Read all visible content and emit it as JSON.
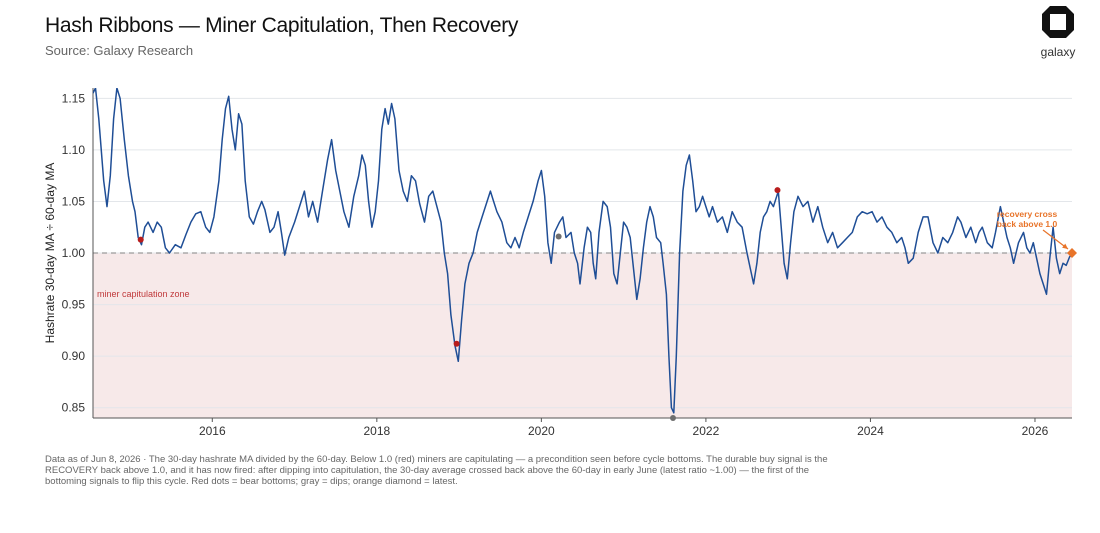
{
  "header": {
    "title": "Hash Ribbons — Miner Capitulation, Then Recovery",
    "subtitle": "Source: Galaxy Research"
  },
  "logo": {
    "text": "galaxy"
  },
  "footnote": "Data as of Jun 8, 2026 · The 30-day hashrate MA divided by the 60-day. Below 1.0 (red) miners are capitulating — a precondition seen before cycle bottoms. The durable buy signal is the RECOVERY back above 1.0, and it has now fired: after dipping into capitulation, the 30-day average crossed back above the 60-day in early June (latest ratio ~1.00) — the first of the bottoming signals to flip this cycle. Red dots = bear bottoms; gray = dips; orange diamond = latest.",
  "colors": {
    "line": "#1f4e96",
    "zone_fill": "#f7e9e9",
    "zone_label": "#c0393b",
    "red_dot": "#b81c1c",
    "gray_dot": "#6e6e6e",
    "orange": "#e8742a",
    "threshold": "#9a9a9a",
    "grid": "#e3e6ea"
  },
  "chart_data": {
    "type": "line",
    "ylabel": "Hashrate 30-day MA ÷ 60-day MA",
    "xlabel": "",
    "xlim": [
      2014.55,
      2026.45
    ],
    "ylim": [
      0.84,
      1.16
    ],
    "yticks": [
      "0.85",
      "0.90",
      "0.95",
      "1.00",
      "1.05",
      "1.10",
      "1.15"
    ],
    "xticks": [
      "2016",
      "2018",
      "2020",
      "2022",
      "2024",
      "2026"
    ],
    "threshold": 1.0,
    "zone_label": "miner capitulation zone",
    "annotation": {
      "text_line1": "recovery cross",
      "text_line2": "back above 1.0"
    },
    "series": [
      {
        "values": [
          [
            2014.55,
            1.155
          ],
          [
            2014.58,
            1.16
          ],
          [
            2014.62,
            1.13
          ],
          [
            2014.68,
            1.07
          ],
          [
            2014.72,
            1.045
          ],
          [
            2014.76,
            1.075
          ],
          [
            2014.8,
            1.13
          ],
          [
            2014.84,
            1.16
          ],
          [
            2014.88,
            1.15
          ],
          [
            2014.93,
            1.11
          ],
          [
            2014.98,
            1.075
          ],
          [
            2015.03,
            1.05
          ],
          [
            2015.06,
            1.04
          ],
          [
            2015.1,
            1.015
          ],
          [
            2015.14,
            1.008
          ],
          [
            2015.18,
            1.025
          ],
          [
            2015.22,
            1.03
          ],
          [
            2015.28,
            1.02
          ],
          [
            2015.33,
            1.03
          ],
          [
            2015.38,
            1.025
          ],
          [
            2015.43,
            1.005
          ],
          [
            2015.48,
            1.0
          ],
          [
            2015.55,
            1.008
          ],
          [
            2015.62,
            1.005
          ],
          [
            2015.68,
            1.018
          ],
          [
            2015.74,
            1.03
          ],
          [
            2015.8,
            1.038
          ],
          [
            2015.86,
            1.04
          ],
          [
            2015.92,
            1.025
          ],
          [
            2015.97,
            1.02
          ],
          [
            2016.02,
            1.035
          ],
          [
            2016.08,
            1.07
          ],
          [
            2016.12,
            1.11
          ],
          [
            2016.16,
            1.14
          ],
          [
            2016.2,
            1.152
          ],
          [
            2016.24,
            1.12
          ],
          [
            2016.28,
            1.1
          ],
          [
            2016.32,
            1.135
          ],
          [
            2016.36,
            1.125
          ],
          [
            2016.4,
            1.07
          ],
          [
            2016.45,
            1.035
          ],
          [
            2016.5,
            1.028
          ],
          [
            2016.55,
            1.04
          ],
          [
            2016.6,
            1.05
          ],
          [
            2016.64,
            1.042
          ],
          [
            2016.7,
            1.02
          ],
          [
            2016.75,
            1.025
          ],
          [
            2016.8,
            1.04
          ],
          [
            2016.84,
            1.02
          ],
          [
            2016.88,
            0.998
          ],
          [
            2016.93,
            1.015
          ],
          [
            2017.0,
            1.03
          ],
          [
            2017.06,
            1.045
          ],
          [
            2017.12,
            1.06
          ],
          [
            2017.17,
            1.035
          ],
          [
            2017.22,
            1.05
          ],
          [
            2017.28,
            1.03
          ],
          [
            2017.34,
            1.06
          ],
          [
            2017.4,
            1.09
          ],
          [
            2017.45,
            1.11
          ],
          [
            2017.5,
            1.08
          ],
          [
            2017.55,
            1.06
          ],
          [
            2017.6,
            1.04
          ],
          [
            2017.66,
            1.025
          ],
          [
            2017.72,
            1.055
          ],
          [
            2017.78,
            1.075
          ],
          [
            2017.82,
            1.095
          ],
          [
            2017.86,
            1.085
          ],
          [
            2017.9,
            1.05
          ],
          [
            2017.94,
            1.025
          ],
          [
            2017.98,
            1.04
          ],
          [
            2018.02,
            1.07
          ],
          [
            2018.06,
            1.12
          ],
          [
            2018.1,
            1.14
          ],
          [
            2018.14,
            1.125
          ],
          [
            2018.18,
            1.145
          ],
          [
            2018.22,
            1.13
          ],
          [
            2018.27,
            1.08
          ],
          [
            2018.32,
            1.06
          ],
          [
            2018.37,
            1.05
          ],
          [
            2018.42,
            1.075
          ],
          [
            2018.47,
            1.07
          ],
          [
            2018.52,
            1.048
          ],
          [
            2018.58,
            1.03
          ],
          [
            2018.63,
            1.055
          ],
          [
            2018.68,
            1.06
          ],
          [
            2018.73,
            1.045
          ],
          [
            2018.78,
            1.03
          ],
          [
            2018.82,
            1.0
          ],
          [
            2018.86,
            0.98
          ],
          [
            2018.9,
            0.94
          ],
          [
            2018.95,
            0.91
          ],
          [
            2018.99,
            0.895
          ],
          [
            2019.03,
            0.935
          ],
          [
            2019.07,
            0.97
          ],
          [
            2019.12,
            0.99
          ],
          [
            2019.17,
            1.0
          ],
          [
            2019.22,
            1.02
          ],
          [
            2019.28,
            1.035
          ],
          [
            2019.34,
            1.05
          ],
          [
            2019.38,
            1.06
          ],
          [
            2019.42,
            1.05
          ],
          [
            2019.46,
            1.04
          ],
          [
            2019.52,
            1.03
          ],
          [
            2019.58,
            1.01
          ],
          [
            2019.63,
            1.005
          ],
          [
            2019.68,
            1.015
          ],
          [
            2019.73,
            1.005
          ],
          [
            2019.78,
            1.02
          ],
          [
            2019.84,
            1.035
          ],
          [
            2019.9,
            1.05
          ],
          [
            2019.96,
            1.07
          ],
          [
            2020.0,
            1.08
          ],
          [
            2020.04,
            1.055
          ],
          [
            2020.08,
            1.01
          ],
          [
            2020.12,
            0.99
          ],
          [
            2020.16,
            1.02
          ],
          [
            2020.22,
            1.03
          ],
          [
            2020.26,
            1.035
          ],
          [
            2020.3,
            1.015
          ],
          [
            2020.36,
            1.02
          ],
          [
            2020.4,
            1.0
          ],
          [
            2020.44,
            0.99
          ],
          [
            2020.47,
            0.97
          ],
          [
            2020.52,
            1.005
          ],
          [
            2020.56,
            1.025
          ],
          [
            2020.6,
            1.02
          ],
          [
            2020.63,
            0.99
          ],
          [
            2020.66,
            0.975
          ],
          [
            2020.7,
            1.02
          ],
          [
            2020.75,
            1.05
          ],
          [
            2020.8,
            1.045
          ],
          [
            2020.84,
            1.025
          ],
          [
            2020.88,
            0.98
          ],
          [
            2020.92,
            0.97
          ],
          [
            2020.96,
            1.0
          ],
          [
            2021.0,
            1.03
          ],
          [
            2021.04,
            1.025
          ],
          [
            2021.08,
            1.015
          ],
          [
            2021.12,
            0.985
          ],
          [
            2021.16,
            0.955
          ],
          [
            2021.2,
            0.975
          ],
          [
            2021.24,
            1.005
          ],
          [
            2021.28,
            1.03
          ],
          [
            2021.32,
            1.045
          ],
          [
            2021.36,
            1.035
          ],
          [
            2021.4,
            1.015
          ],
          [
            2021.45,
            1.01
          ],
          [
            2021.48,
            0.99
          ],
          [
            2021.52,
            0.96
          ],
          [
            2021.55,
            0.9
          ],
          [
            2021.58,
            0.85
          ],
          [
            2021.61,
            0.845
          ],
          [
            2021.64,
            0.9
          ],
          [
            2021.68,
            1.0
          ],
          [
            2021.72,
            1.06
          ],
          [
            2021.76,
            1.085
          ],
          [
            2021.8,
            1.095
          ],
          [
            2021.84,
            1.07
          ],
          [
            2021.88,
            1.04
          ],
          [
            2021.92,
            1.045
          ],
          [
            2021.96,
            1.055
          ],
          [
            2022.0,
            1.045
          ],
          [
            2022.04,
            1.035
          ],
          [
            2022.08,
            1.045
          ],
          [
            2022.14,
            1.03
          ],
          [
            2022.2,
            1.035
          ],
          [
            2022.26,
            1.02
          ],
          [
            2022.32,
            1.04
          ],
          [
            2022.38,
            1.03
          ],
          [
            2022.44,
            1.025
          ],
          [
            2022.5,
            1.0
          ],
          [
            2022.54,
            0.985
          ],
          [
            2022.58,
            0.97
          ],
          [
            2022.62,
            0.99
          ],
          [
            2022.66,
            1.02
          ],
          [
            2022.7,
            1.035
          ],
          [
            2022.74,
            1.04
          ],
          [
            2022.78,
            1.05
          ],
          [
            2022.82,
            1.045
          ],
          [
            2022.86,
            1.055
          ],
          [
            2022.88,
            1.06
          ],
          [
            2022.91,
            1.03
          ],
          [
            2022.95,
            0.99
          ],
          [
            2022.99,
            0.975
          ],
          [
            2023.03,
            1.01
          ],
          [
            2023.07,
            1.04
          ],
          [
            2023.12,
            1.055
          ],
          [
            2023.18,
            1.045
          ],
          [
            2023.24,
            1.05
          ],
          [
            2023.3,
            1.03
          ],
          [
            2023.36,
            1.045
          ],
          [
            2023.42,
            1.025
          ],
          [
            2023.48,
            1.01
          ],
          [
            2023.54,
            1.02
          ],
          [
            2023.6,
            1.005
          ],
          [
            2023.66,
            1.01
          ],
          [
            2023.72,
            1.015
          ],
          [
            2023.78,
            1.02
          ],
          [
            2023.84,
            1.035
          ],
          [
            2023.9,
            1.04
          ],
          [
            2023.96,
            1.038
          ],
          [
            2024.02,
            1.04
          ],
          [
            2024.08,
            1.03
          ],
          [
            2024.14,
            1.035
          ],
          [
            2024.2,
            1.025
          ],
          [
            2024.26,
            1.02
          ],
          [
            2024.32,
            1.01
          ],
          [
            2024.38,
            1.015
          ],
          [
            2024.42,
            1.005
          ],
          [
            2024.46,
            0.99
          ],
          [
            2024.52,
            0.995
          ],
          [
            2024.58,
            1.02
          ],
          [
            2024.64,
            1.035
          ],
          [
            2024.7,
            1.035
          ],
          [
            2024.76,
            1.01
          ],
          [
            2024.82,
            1.0
          ],
          [
            2024.88,
            1.015
          ],
          [
            2024.94,
            1.01
          ],
          [
            2025.0,
            1.02
          ],
          [
            2025.06,
            1.035
          ],
          [
            2025.1,
            1.03
          ],
          [
            2025.16,
            1.015
          ],
          [
            2025.22,
            1.025
          ],
          [
            2025.28,
            1.01
          ],
          [
            2025.32,
            1.02
          ],
          [
            2025.36,
            1.025
          ],
          [
            2025.42,
            1.01
          ],
          [
            2025.48,
            1.005
          ],
          [
            2025.52,
            1.02
          ],
          [
            2025.58,
            1.045
          ],
          [
            2025.62,
            1.03
          ],
          [
            2025.66,
            1.015
          ],
          [
            2025.7,
            1.005
          ],
          [
            2025.74,
            0.99
          ],
          [
            2025.8,
            1.01
          ],
          [
            2025.86,
            1.02
          ],
          [
            2025.9,
            1.005
          ],
          [
            2025.94,
            1.0
          ],
          [
            2025.98,
            1.01
          ],
          [
            2026.02,
            0.995
          ],
          [
            2026.06,
            0.98
          ],
          [
            2026.1,
            0.97
          ],
          [
            2026.14,
            0.96
          ],
          [
            2026.18,
            0.995
          ],
          [
            2026.22,
            1.025
          ],
          [
            2026.26,
            0.995
          ],
          [
            2026.3,
            0.98
          ],
          [
            2026.34,
            0.99
          ],
          [
            2026.38,
            0.988
          ],
          [
            2026.42,
            0.996
          ],
          [
            2026.45,
            1.0
          ]
        ]
      }
    ],
    "markers": [
      {
        "kind": "red",
        "x": 2015.13,
        "y": 1.013
      },
      {
        "kind": "red",
        "x": 2018.97,
        "y": 0.912
      },
      {
        "kind": "gray",
        "x": 2020.21,
        "y": 1.016
      },
      {
        "kind": "gray",
        "x": 2021.6,
        "y": 0.84
      },
      {
        "kind": "red",
        "x": 2022.87,
        "y": 1.061
      },
      {
        "kind": "orange-diamond",
        "x": 2026.45,
        "y": 1.0
      }
    ]
  }
}
